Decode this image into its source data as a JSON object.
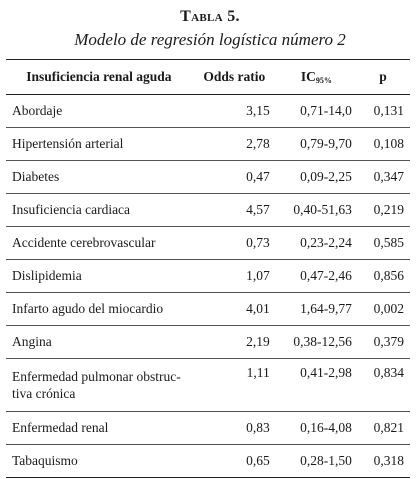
{
  "caption": {
    "label": "Tabla 5.",
    "title": "Modelo de regresión logística número 2"
  },
  "table": {
    "headers": {
      "name": "Insuficiencia renal aguda",
      "odds": "Odds ratio",
      "ic": "IC",
      "ic_sub": "95%",
      "p": "p"
    },
    "rows": [
      {
        "name": "Abordaje",
        "odds": "3,15",
        "ic": "0,71-14,0",
        "p": "0,131"
      },
      {
        "name": "Hipertensión arterial",
        "odds": "2,78",
        "ic": "0,79-9,70",
        "p": "0,108"
      },
      {
        "name": "Diabetes",
        "odds": "0,47",
        "ic": "0,09-2,25",
        "p": "0,347"
      },
      {
        "name": "Insuficiencia cardiaca",
        "odds": "4,57",
        "ic": "0,40-51,63",
        "p": "0,219"
      },
      {
        "name": "Accidente cerebrovascular",
        "odds": "0,73",
        "ic": "0,23-2,24",
        "p": "0,585"
      },
      {
        "name": "Dislipidemia",
        "odds": "1,07",
        "ic": "0,47-2,46",
        "p": "0,856"
      },
      {
        "name": "Infarto agudo del miocardio",
        "odds": "4,01",
        "ic": "1,64-9,77",
        "p": "0,002"
      },
      {
        "name": "Angina",
        "odds": "2,19",
        "ic": "0,38-12,56",
        "p": "0,379"
      },
      {
        "name_line1": "Enfermedad pulmonar obstruc-",
        "name_line2": "tiva crónica",
        "odds": "1,11",
        "ic": "0,41-2,98",
        "p": "0,834"
      },
      {
        "name": "Enfermedad renal",
        "odds": "0,83",
        "ic": "0,16-4,08",
        "p": "0,821"
      },
      {
        "name": "Tabaquismo",
        "odds": "0,65",
        "ic": "0,28-1,50",
        "p": "0,318"
      }
    ]
  }
}
